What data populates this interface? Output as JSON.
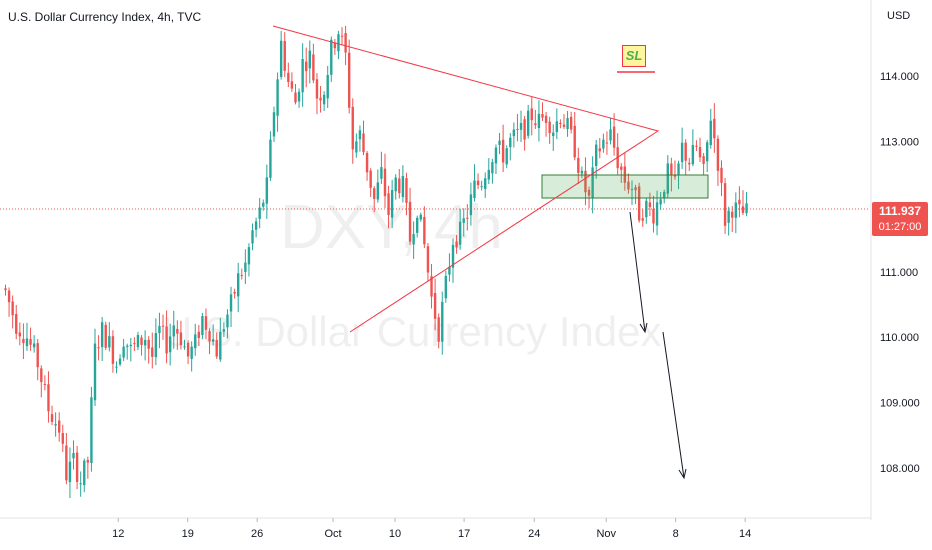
{
  "chart_title": "U.S. Dollar Currency Index, 4h, TVC",
  "watermark": {
    "symbol": "DXY, 4h",
    "name": "U.S. Dollar Currency Index"
  },
  "price_axis": {
    "unit": "USD",
    "ticks": [
      "114.000",
      "113.000",
      "112.000",
      "111.000",
      "110.000",
      "109.000",
      "108.000"
    ]
  },
  "current_price": {
    "value": "111.937",
    "countdown": "01:27:00"
  },
  "sl_label": "SL",
  "time_axis": {
    "ticks": [
      "12",
      "19",
      "26",
      "Oct",
      "10",
      "17",
      "24",
      "Nov",
      "8",
      "14"
    ]
  },
  "colors": {
    "up": "#26a69a",
    "down": "#ef5350",
    "triangle": "#f23645",
    "zone": "#4caf50",
    "arrow": "#131722"
  },
  "chart_data": {
    "type": "candlestick",
    "title": "U.S. Dollar Currency Index, 4h, TVC",
    "ylabel": "USD",
    "ylim": [
      107.4,
      115.1
    ],
    "x_ticks": [
      "12",
      "19",
      "26",
      "Oct",
      "10",
      "17",
      "24",
      "Nov",
      "8",
      "14"
    ],
    "x_tick_indices": [
      31.5,
      50.9,
      70.3,
      91.5,
      108.8,
      128.1,
      147.7,
      167.8,
      187.2,
      206.6
    ],
    "close_path": [
      [
        0,
        110.7
      ],
      [
        3,
        110.2
      ],
      [
        6,
        110.0
      ],
      [
        9,
        109.6
      ],
      [
        12,
        108.9
      ],
      [
        15,
        108.6
      ],
      [
        17,
        107.9
      ],
      [
        19,
        108.1
      ],
      [
        21,
        107.8
      ],
      [
        23,
        108.1
      ],
      [
        25,
        109.8
      ],
      [
        27,
        110.1
      ],
      [
        29,
        109.9
      ],
      [
        31,
        109.6
      ],
      [
        33,
        110.0
      ],
      [
        35,
        109.8
      ],
      [
        37,
        109.9
      ],
      [
        39,
        110.0
      ],
      [
        41,
        109.7
      ],
      [
        43,
        110.1
      ],
      [
        45,
        109.9
      ],
      [
        47,
        110.2
      ],
      [
        49,
        110.0
      ],
      [
        51,
        109.7
      ],
      [
        53,
        109.9
      ],
      [
        55,
        110.3
      ],
      [
        57,
        110.1
      ],
      [
        59,
        109.8
      ],
      [
        61,
        110.2
      ],
      [
        63,
        110.5
      ],
      [
        65,
        110.9
      ],
      [
        67,
        111.1
      ],
      [
        69,
        111.6
      ],
      [
        71,
        111.9
      ],
      [
        73,
        112.3
      ],
      [
        75,
        113.5
      ],
      [
        77,
        114.5
      ],
      [
        79,
        113.9
      ],
      [
        81,
        113.6
      ],
      [
        83,
        114.2
      ],
      [
        85,
        114.3
      ],
      [
        87,
        113.7
      ],
      [
        89,
        113.8
      ],
      [
        91,
        114.4
      ],
      [
        93,
        114.7
      ],
      [
        95,
        114.3
      ],
      [
        97,
        112.9
      ],
      [
        99,
        113.1
      ],
      [
        101,
        112.6
      ],
      [
        103,
        112.1
      ],
      [
        105,
        112.5
      ],
      [
        107,
        111.9
      ],
      [
        109,
        112.4
      ],
      [
        111,
        112.3
      ],
      [
        113,
        111.5
      ],
      [
        115,
        112.0
      ],
      [
        117,
        111.4
      ],
      [
        119,
        110.6
      ],
      [
        121,
        110.1
      ],
      [
        123,
        110.8
      ],
      [
        125,
        111.5
      ],
      [
        127,
        111.6
      ],
      [
        129,
        111.9
      ],
      [
        131,
        112.3
      ],
      [
        133,
        112.4
      ],
      [
        135,
        112.7
      ],
      [
        137,
        112.9
      ],
      [
        139,
        112.8
      ],
      [
        141,
        113.0
      ],
      [
        143,
        113.1
      ],
      [
        145,
        113.2
      ],
      [
        147,
        113.4
      ],
      [
        149,
        113.3
      ],
      [
        151,
        113.4
      ],
      [
        153,
        113.2
      ],
      [
        155,
        113.4
      ],
      [
        157,
        113.2
      ],
      [
        159,
        112.9
      ],
      [
        161,
        112.4
      ],
      [
        163,
        112.1
      ],
      [
        165,
        112.8
      ],
      [
        167,
        113.0
      ],
      [
        169,
        113.1
      ],
      [
        171,
        112.7
      ],
      [
        173,
        112.4
      ],
      [
        175,
        112.3
      ],
      [
        177,
        111.9
      ],
      [
        179,
        112.0
      ],
      [
        181,
        111.9
      ],
      [
        183,
        112.2
      ],
      [
        185,
        112.5
      ],
      [
        187,
        112.3
      ],
      [
        189,
        112.9
      ],
      [
        191,
        112.7
      ],
      [
        193,
        112.9
      ],
      [
        195,
        112.5
      ],
      [
        197,
        113.4
      ],
      [
        199,
        112.7
      ],
      [
        201,
        111.8
      ],
      [
        203,
        112.0
      ],
      [
        205,
        111.9
      ],
      [
        207,
        111.9
      ]
    ]
  }
}
